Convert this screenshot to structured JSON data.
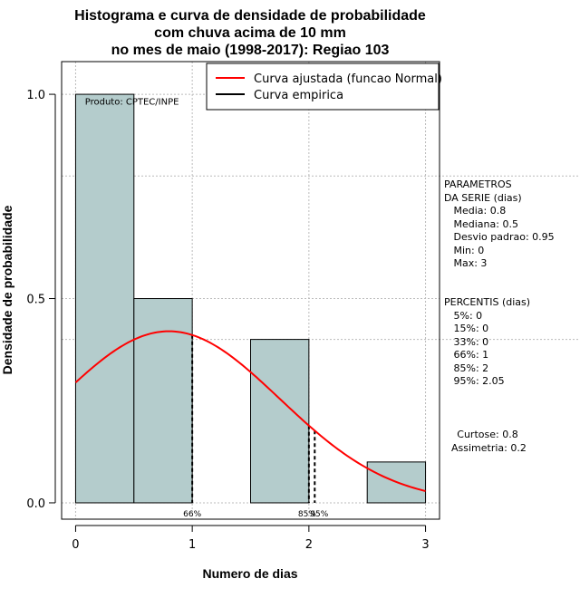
{
  "chart_data": {
    "type": "bar",
    "title": [
      "Histograma e curva de densidade de probabilidade",
      "com chuva acima de 10 mm",
      "no mes de maio (1998-2017): Regiao 103"
    ],
    "xlabel": "Numero de dias",
    "ylabel": "Densidade de probabilidade",
    "xlim": [
      -0.12,
      3.12
    ],
    "ylim": [
      -0.04,
      1.08
    ],
    "x_ticks": [
      0,
      1,
      2,
      3
    ],
    "y_ticks": [
      0.0,
      0.5,
      1.0
    ],
    "y_tick_labels": [
      "0.0",
      "0.5",
      "1.0"
    ],
    "grid": true,
    "bins": [
      {
        "x0": 0.0,
        "x1": 0.5,
        "density": 1.0
      },
      {
        "x0": 0.5,
        "x1": 1.0,
        "density": 0.5
      },
      {
        "x0": 1.0,
        "x1": 1.5,
        "density": 0.0
      },
      {
        "x0": 1.5,
        "x1": 2.0,
        "density": 0.4
      },
      {
        "x0": 2.0,
        "x1": 2.5,
        "density": 0.0
      },
      {
        "x0": 2.5,
        "x1": 3.0,
        "density": 0.1
      }
    ],
    "normal_fit": {
      "name": "Curva ajustada (funcao Normal)",
      "mean": 0.8,
      "sd": 0.95,
      "color": "#ff0000"
    },
    "empirical": {
      "name": "Curva empirica",
      "color": "#000000"
    },
    "percentile_marks": [
      {
        "x": 1.0,
        "label": "66%"
      },
      {
        "x": 2.0,
        "label": "85%"
      },
      {
        "x": 2.05,
        "label": "95%"
      }
    ],
    "annotation": "Produto: CPTEC/INPE",
    "bar_color": "#b4cccc",
    "legend_position": "top-right"
  },
  "side_panel": {
    "parametros": [
      "PARAMETROS",
      "DA SERIE (dias)",
      "   Media: 0.8",
      "   Mediana: 0.5",
      "   Desvio padrao: 0.95",
      "   Min: 0",
      "   Max: 3"
    ],
    "percentis": [
      "PERCENTIS (dias)",
      "   5%: 0",
      "   15%: 0",
      "   33%: 0",
      "   66%: 1",
      "   85%: 2",
      "   95%: 2.05"
    ],
    "shape": [
      "Curtose: 0.8",
      "Assimetria: 0.2"
    ]
  }
}
